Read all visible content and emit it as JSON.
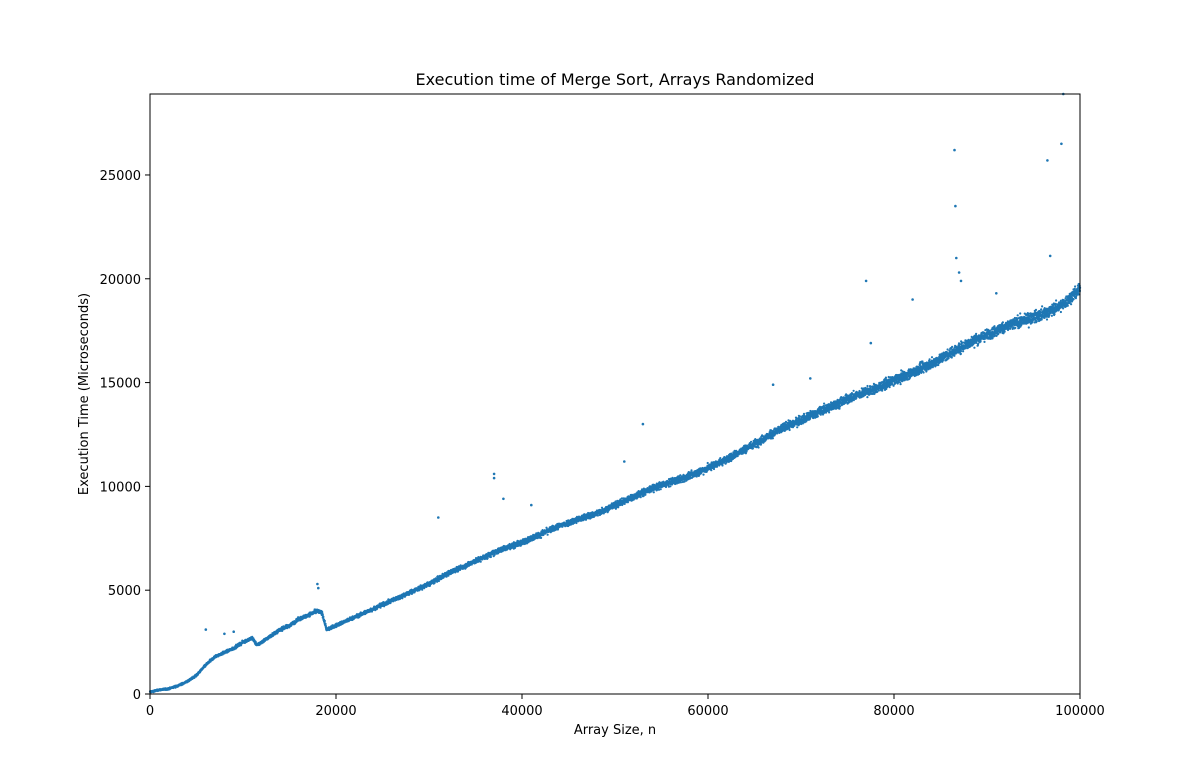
{
  "chart_data": {
    "type": "scatter",
    "title": "Execution time of Merge Sort, Arrays Randomized",
    "xlabel": "Array Size, n",
    "ylabel": "Execution Time (Microseconds)",
    "xlim": [
      0,
      100000
    ],
    "ylim": [
      0,
      28900
    ],
    "x_ticks": [
      0,
      20000,
      40000,
      60000,
      80000,
      100000
    ],
    "x_tick_labels": [
      "0",
      "20000",
      "40000",
      "60000",
      "80000",
      "100000"
    ],
    "y_ticks": [
      0,
      5000,
      10000,
      15000,
      20000,
      25000
    ],
    "y_tick_labels": [
      "0",
      "5000",
      "10000",
      "15000",
      "20000",
      "25000"
    ],
    "grid": false,
    "legend": "none",
    "color": "#1f77b4",
    "series": [
      {
        "x": [
          0,
          1000,
          2000,
          3000,
          4000,
          5000,
          6000,
          7000,
          8000,
          9000,
          10000,
          11000,
          11500,
          12000,
          13000,
          14000,
          15000,
          16000,
          17000,
          18000,
          18500,
          19000,
          20000,
          22000,
          24000,
          26000,
          28000,
          30000,
          32000,
          34000,
          36000,
          38000,
          40000,
          42000,
          44000,
          46000,
          48000,
          50000,
          52000,
          54000,
          56000,
          58000,
          60000,
          62000,
          64000,
          66000,
          68000,
          70000,
          72000,
          74000,
          76000,
          78000,
          80000,
          82000,
          84000,
          86000,
          88000,
          90000,
          92000,
          94000,
          96000,
          98000,
          100000
        ],
        "y": [
          100,
          200,
          250,
          400,
          600,
          900,
          1400,
          1800,
          2000,
          2200,
          2500,
          2700,
          2350,
          2500,
          2800,
          3100,
          3300,
          3600,
          3800,
          4000,
          3900,
          3100,
          3300,
          3700,
          4100,
          4500,
          4900,
          5300,
          5800,
          6200,
          6600,
          7000,
          7300,
          7700,
          8100,
          8400,
          8700,
          9100,
          9500,
          9900,
          10200,
          10500,
          10900,
          11300,
          11800,
          12300,
          12800,
          13200,
          13600,
          14000,
          14400,
          14700,
          15100,
          15500,
          15900,
          16400,
          16900,
          17300,
          17700,
          18000,
          18300,
          18700,
          19500
        ]
      }
    ],
    "outliers": {
      "x": [
        6000,
        8000,
        9000,
        18000,
        18100,
        31000,
        37000,
        37000,
        38000,
        41000,
        51000,
        53000,
        67000,
        71000,
        77000,
        77500,
        82000,
        86500,
        86600,
        86700,
        87000,
        87200,
        91000,
        96500,
        96800,
        98000,
        98200
      ],
      "y": [
        3100,
        2900,
        3000,
        5300,
        5100,
        8500,
        10600,
        10400,
        9400,
        9100,
        11200,
        13000,
        14900,
        15200,
        19900,
        16900,
        19000,
        26200,
        23500,
        21000,
        20300,
        19900,
        19300,
        25700,
        21100,
        26500,
        28900
      ]
    }
  }
}
